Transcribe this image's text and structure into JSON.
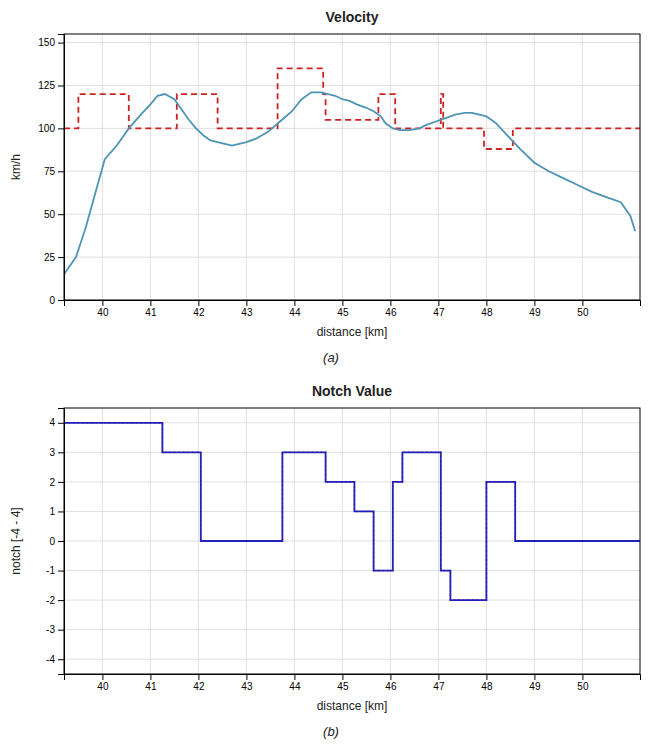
{
  "chart_data": [
    {
      "type": "line",
      "title": "Velocity",
      "x_label": "distance [km]",
      "y_label": "km/h",
      "annotation": "(a)",
      "xlim": [
        39.2,
        51.2
      ],
      "ylim": [
        0,
        155
      ],
      "xticks": [
        40,
        41,
        42,
        43,
        44,
        45,
        46,
        47,
        48,
        49,
        50
      ],
      "yticks": [
        0,
        25,
        50,
        75,
        100,
        125,
        150
      ],
      "grid": true,
      "series": [
        {
          "color": "#cc2222",
          "line_style": "dashed",
          "x": [
            39.2,
            39.5,
            39.5,
            40.55,
            40.55,
            41.55,
            41.55,
            42.4,
            42.4,
            43.65,
            43.65,
            44.6,
            44.6,
            44.65,
            44.65,
            45.75,
            45.75,
            46.1,
            46.1,
            47.05,
            47.05,
            47.1,
            47.1,
            47.95,
            47.95,
            48.55,
            48.55,
            49.0,
            49.0,
            51.2
          ],
          "values": [
            100,
            100,
            120,
            120,
            100,
            100,
            120,
            120,
            100,
            100,
            135,
            135,
            120,
            120,
            105,
            105,
            120,
            120,
            100,
            100,
            120,
            120,
            100,
            100,
            88,
            88,
            100,
            100,
            100,
            100
          ]
        },
        {
          "color": "#4d94b5",
          "line_style": "solid",
          "x": [
            39.2,
            39.45,
            39.65,
            39.85,
            40.05,
            40.3,
            40.55,
            40.8,
            41.0,
            41.15,
            41.3,
            41.5,
            41.65,
            41.8,
            41.95,
            42.1,
            42.25,
            42.4,
            42.55,
            42.7,
            42.85,
            43.0,
            43.2,
            43.45,
            43.7,
            43.95,
            44.15,
            44.35,
            44.55,
            44.7,
            44.85,
            45.0,
            45.15,
            45.3,
            45.5,
            45.65,
            45.8,
            45.9,
            46.05,
            46.2,
            46.4,
            46.6,
            46.75,
            46.95,
            47.15,
            47.35,
            47.55,
            47.7,
            47.85,
            48.0,
            48.2,
            48.4,
            48.7,
            49.0,
            49.3,
            49.6,
            49.9,
            50.2,
            50.5,
            50.8,
            51.0,
            51.1
          ],
          "values": [
            15,
            25,
            42,
            62,
            82,
            90,
            100,
            108,
            114,
            119,
            120,
            117,
            111,
            105,
            100,
            96,
            93,
            92,
            91,
            90,
            91,
            92,
            94,
            98,
            104,
            110,
            117,
            121,
            121,
            120,
            119,
            117,
            116,
            114,
            112,
            110,
            107,
            103,
            100,
            99,
            99,
            100,
            102,
            104,
            106,
            108,
            109,
            109,
            108,
            107,
            103,
            97,
            88,
            80,
            75,
            71,
            67,
            63,
            60,
            57,
            49,
            40
          ]
        }
      ]
    },
    {
      "type": "step",
      "title": "Notch Value",
      "x_label": "distance [km]",
      "y_label": "notch [-4 - 4]",
      "annotation": "(b)",
      "xlim": [
        39.2,
        51.2
      ],
      "ylim": [
        -4.5,
        4.5
      ],
      "xticks": [
        40,
        41,
        42,
        43,
        44,
        45,
        46,
        47,
        48,
        49,
        50
      ],
      "yticks": [
        -4,
        -3,
        -2,
        -1,
        0,
        1,
        2,
        3,
        4
      ],
      "grid": true,
      "series": [
        {
          "color": "#cc2222",
          "line_style": "dotted",
          "x": [
            39.2,
            41.25,
            41.25,
            42.05,
            42.05,
            43.75,
            43.75,
            44.65,
            44.65,
            45.25,
            45.25,
            45.65,
            45.65,
            46.05,
            46.05,
            46.25,
            46.25,
            47.05,
            47.05,
            47.25,
            47.25,
            48.0,
            48.0,
            48.6,
            48.6,
            49.05,
            49.05,
            51.2
          ],
          "values": [
            4,
            4,
            3,
            3,
            0,
            0,
            3,
            3,
            2,
            2,
            1,
            1,
            -1,
            -1,
            2,
            2,
            3,
            3,
            -1,
            -1,
            -2,
            -2,
            2,
            2,
            0,
            0,
            0,
            0
          ]
        },
        {
          "color": "#2020bb",
          "line_style": "solid",
          "x": [
            39.2,
            41.25,
            41.25,
            42.05,
            42.05,
            43.75,
            43.75,
            44.65,
            44.65,
            45.25,
            45.25,
            45.65,
            45.65,
            46.05,
            46.05,
            46.25,
            46.25,
            47.05,
            47.05,
            47.25,
            47.25,
            48.0,
            48.0,
            48.6,
            48.6,
            49.05,
            49.05,
            51.2
          ],
          "values": [
            4,
            4,
            3,
            3,
            0,
            0,
            3,
            3,
            2,
            2,
            1,
            1,
            -1,
            -1,
            2,
            2,
            3,
            3,
            -1,
            -1,
            -2,
            -2,
            2,
            2,
            0,
            0,
            0,
            0
          ]
        }
      ]
    }
  ]
}
